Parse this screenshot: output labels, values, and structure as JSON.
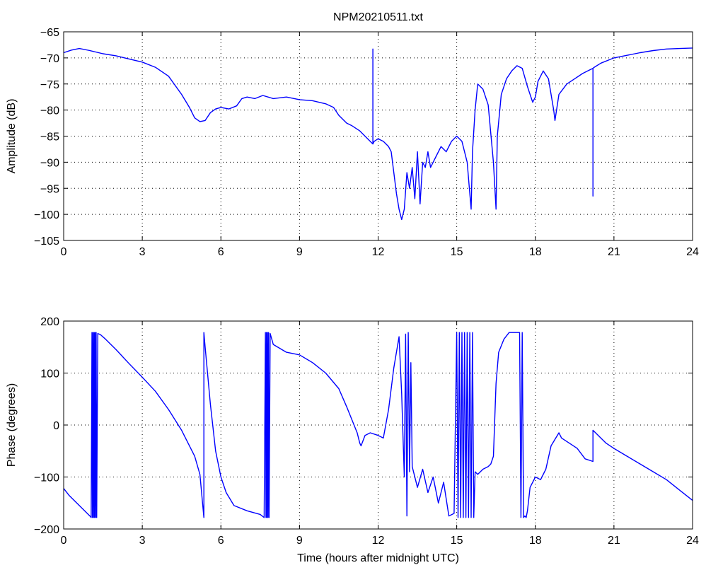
{
  "chart_data": [
    {
      "type": "line",
      "title": "NPM20210511.txt",
      "xlabel": "",
      "ylabel": "Amplitude (dB)",
      "xlim": [
        0,
        24
      ],
      "ylim": [
        -105,
        -65
      ],
      "xticks": [
        "0",
        "3",
        "6",
        "9",
        "12",
        "15",
        "18",
        "21",
        "24"
      ],
      "yticks": [
        "-65",
        "-70",
        "-75",
        "-80",
        "-85",
        "-90",
        "-95",
        "-100",
        "-105"
      ],
      "grid": true,
      "color": "#0000ff",
      "series": [
        {
          "x": [
            0,
            0.3,
            0.6,
            1.0,
            1.5,
            2.0,
            2.5,
            3.0,
            3.5,
            4.0,
            4.5,
            4.8,
            5.0,
            5.2,
            5.4,
            5.6,
            5.8,
            6.0,
            6.3,
            6.6,
            6.8,
            7.0,
            7.3,
            7.6,
            8.0,
            8.5,
            9.0,
            9.5,
            10.0,
            10.3,
            10.5,
            10.8,
            11.0,
            11.3,
            11.6,
            11.8,
            11.8,
            11.8,
            11.85,
            12.0,
            12.2,
            12.4,
            12.5,
            12.6,
            12.7,
            12.8,
            12.9,
            13.0,
            13.1,
            13.2,
            13.3,
            13.4,
            13.5,
            13.6,
            13.7,
            13.8,
            13.9,
            14.0,
            14.2,
            14.4,
            14.6,
            14.8,
            15.0,
            15.2,
            15.4,
            15.5,
            15.55,
            15.6,
            15.7,
            15.8,
            16.0,
            16.2,
            16.4,
            16.5,
            16.55,
            16.7,
            16.9,
            17.1,
            17.3,
            17.5,
            17.7,
            17.9,
            18.0,
            18.1,
            18.3,
            18.5,
            18.7,
            18.75,
            18.9,
            19.2,
            19.5,
            19.8,
            20.0,
            20.2,
            20.2,
            20.2,
            20.25,
            20.5,
            21.0,
            21.5,
            22.0,
            22.5,
            23.0,
            23.5,
            24.0
          ],
          "y": [
            -69,
            -68.5,
            -68.2,
            -68.6,
            -69.2,
            -69.6,
            -70.2,
            -70.8,
            -71.8,
            -73.5,
            -77,
            -79.5,
            -81.5,
            -82.2,
            -82,
            -80.5,
            -79.8,
            -79.5,
            -79.8,
            -79.2,
            -77.8,
            -77.5,
            -77.8,
            -77.2,
            -77.8,
            -77.5,
            -78,
            -78.2,
            -78.8,
            -79.5,
            -81,
            -82.5,
            -83,
            -84,
            -85.5,
            -86.5,
            -68.3,
            -86.5,
            -86,
            -85.5,
            -86,
            -87,
            -88,
            -92,
            -96,
            -99,
            -101,
            -99,
            -92,
            -95,
            -91,
            -97,
            -88,
            -98,
            -90,
            -91,
            -88,
            -91,
            -89,
            -87,
            -88,
            -86,
            -85,
            -86,
            -90,
            -96,
            -99,
            -88,
            -80,
            -75,
            -76,
            -79,
            -90,
            -99,
            -85,
            -77,
            -74,
            -72.5,
            -71.5,
            -72,
            -75.5,
            -78.5,
            -77.5,
            -74.5,
            -72.5,
            -74,
            -80,
            -82,
            -77,
            -75,
            -74,
            -73,
            -72.5,
            -72,
            -96.5,
            -72,
            -71.8,
            -71,
            -70,
            -69.5,
            -69,
            -68.6,
            -68.3,
            -68.2,
            -68.1
          ]
        }
      ]
    },
    {
      "type": "line",
      "title": "",
      "xlabel": "Time (hours after midnight UTC)",
      "ylabel": "Phase (degrees)",
      "xlim": [
        0,
        24
      ],
      "ylim": [
        -200,
        200
      ],
      "xticks": [
        "0",
        "3",
        "6",
        "9",
        "12",
        "15",
        "18",
        "21",
        "24"
      ],
      "yticks": [
        "200",
        "100",
        "0",
        "-100",
        "-200"
      ],
      "grid": true,
      "color": "#0000ff",
      "series": [
        {
          "x": [
            0,
            0.2,
            0.5,
            0.8,
            1.0,
            1.05,
            1.08,
            1.1,
            1.12,
            1.14,
            1.16,
            1.18,
            1.2,
            1.22,
            1.24,
            1.26,
            1.3,
            1.4,
            1.6,
            2.0,
            2.5,
            3.0,
            3.5,
            4.0,
            4.5,
            5.0,
            5.2,
            5.35,
            5.35,
            5.4,
            5.6,
            5.8,
            6.0,
            6.2,
            6.5,
            7.0,
            7.5,
            7.65,
            7.7,
            7.72,
            7.74,
            7.76,
            7.78,
            7.8,
            7.82,
            7.84,
            7.88,
            8.0,
            8.5,
            9.0,
            9.5,
            10.0,
            10.5,
            10.8,
            11.0,
            11.2,
            11.3,
            11.35,
            11.5,
            11.7,
            12.0,
            12.2,
            12.4,
            12.6,
            12.8,
            12.9,
            13.0,
            13.05,
            13.1,
            13.15,
            13.2,
            13.25,
            13.3,
            13.5,
            13.7,
            13.9,
            14.1,
            14.3,
            14.5,
            14.7,
            14.9,
            15.0,
            15.05,
            15.1,
            15.15,
            15.2,
            15.25,
            15.3,
            15.35,
            15.4,
            15.45,
            15.5,
            15.55,
            15.6,
            15.65,
            15.7,
            15.8,
            16.0,
            16.2,
            16.3,
            16.4,
            16.5,
            16.6,
            16.8,
            17.0,
            17.2,
            17.4,
            17.45,
            17.5,
            17.55,
            17.6,
            17.65,
            17.7,
            17.8,
            18.0,
            18.2,
            18.4,
            18.6,
            18.9,
            19.0,
            19.3,
            19.6,
            19.9,
            20.2,
            20.2,
            20.3,
            20.7,
            21.0,
            21.5,
            22.0,
            22.5,
            23.0,
            23.5,
            24.0
          ],
          "y": [
            -122,
            -135,
            -150,
            -165,
            -175,
            -178,
            178,
            -178,
            178,
            -178,
            178,
            -178,
            178,
            -178,
            178,
            -178,
            176,
            174,
            165,
            145,
            118,
            92,
            65,
            30,
            -10,
            -60,
            -95,
            -178,
            178,
            150,
            40,
            -50,
            -100,
            -130,
            -155,
            -165,
            -172,
            -178,
            178,
            -178,
            178,
            -178,
            178,
            -178,
            178,
            -178,
            176,
            155,
            140,
            135,
            120,
            100,
            70,
            35,
            10,
            -15,
            -35,
            -40,
            -20,
            -15,
            -20,
            -25,
            30,
            110,
            170,
            60,
            -100,
            175,
            -175,
            178,
            -90,
            120,
            -80,
            -120,
            -85,
            -130,
            -100,
            -150,
            -110,
            -175,
            -170,
            178,
            -178,
            178,
            -178,
            178,
            -178,
            178,
            -178,
            178,
            -178,
            178,
            -178,
            178,
            -178,
            -90,
            -95,
            -85,
            -80,
            -75,
            -60,
            80,
            140,
            165,
            178,
            178,
            178,
            -178,
            178,
            -178,
            -175,
            -178,
            -165,
            -120,
            -100,
            -105,
            -85,
            -40,
            -15,
            -25,
            -35,
            -45,
            -65,
            -70,
            -10,
            -15,
            -35,
            -45,
            -60,
            -75,
            -90,
            -105,
            -125,
            -145
          ]
        }
      ]
    }
  ]
}
